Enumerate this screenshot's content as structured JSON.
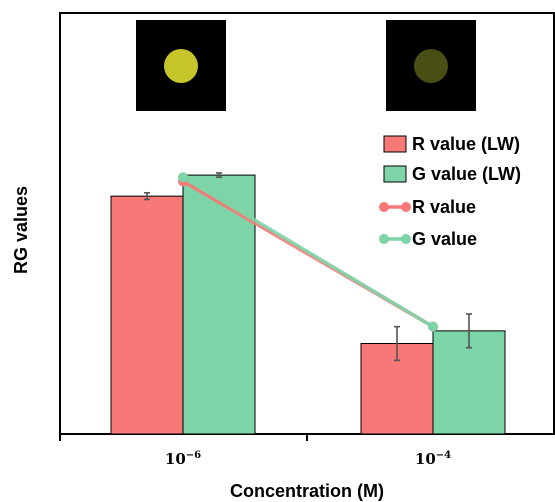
{
  "chart_data": {
    "type": "bar",
    "categories": [
      {
        "base": "10",
        "exp": "−6"
      },
      {
        "base": "10",
        "exp": "−4"
      }
    ],
    "xlabel": "Concentration (M)",
    "ylabel": "RG  values",
    "ylim": [
      0,
      100
    ],
    "series": [
      {
        "name": "R value (LW)",
        "kind": "bar",
        "color": "#f87878",
        "values": [
          56.5,
          21.5
        ],
        "errors": [
          0.8,
          4.0
        ]
      },
      {
        "name": "G value (LW)",
        "kind": "bar",
        "color": "#7dd4a6",
        "values": [
          61.5,
          24.5
        ],
        "errors": [
          0.5,
          4.0
        ]
      },
      {
        "name": "R value",
        "kind": "line",
        "color": "#f87878",
        "values": [
          60.0,
          25.5
        ]
      },
      {
        "name": "G value",
        "kind": "line",
        "color": "#7dd4a6",
        "values": [
          61.0,
          25.5
        ]
      }
    ],
    "insets": [
      {
        "category_index": 0,
        "spot_color": "#c6c62a",
        "background": "#000000"
      },
      {
        "category_index": 1,
        "spot_color": "#4a4d14",
        "background": "#000000"
      }
    ],
    "grid": false,
    "legend_position": "right"
  }
}
